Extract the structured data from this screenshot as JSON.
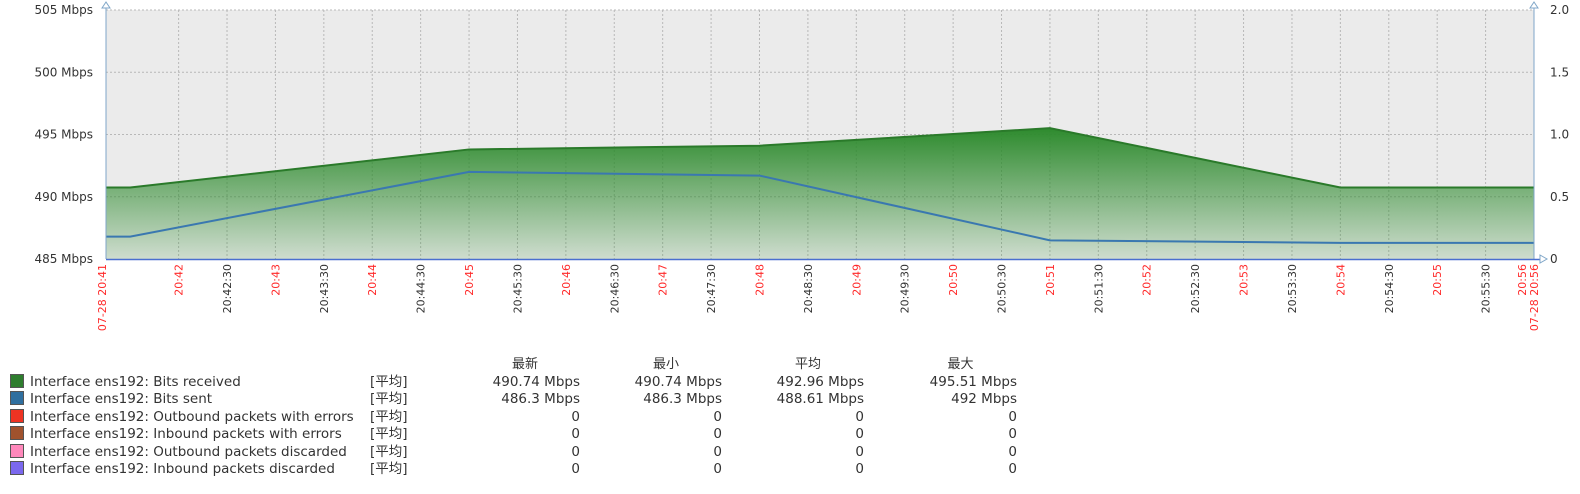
{
  "chart_data": {
    "type": "area",
    "y_left": {
      "ticks": [
        "485 Mbps",
        "490 Mbps",
        "495 Mbps",
        "500 Mbps",
        "505 Mbps"
      ],
      "ylim": [
        485,
        505
      ],
      "unit": "Mbps"
    },
    "y_right": {
      "ticks": [
        "0",
        "0.5",
        "1.0",
        "1.5",
        "2.0"
      ],
      "ylim": [
        0,
        2
      ]
    },
    "x_range": [
      "20:41:15",
      "20:56:00"
    ],
    "x_labels": [
      {
        "t": "20:41:15",
        "label": "07-28 20:41",
        "red": true
      },
      {
        "t": "20:42:00",
        "label": "20:42",
        "red": true
      },
      {
        "t": "20:42:30",
        "label": "20:42:30",
        "red": false
      },
      {
        "t": "20:43:00",
        "label": "20:43",
        "red": true
      },
      {
        "t": "20:43:30",
        "label": "20:43:30",
        "red": false
      },
      {
        "t": "20:44:00",
        "label": "20:44",
        "red": true
      },
      {
        "t": "20:44:30",
        "label": "20:44:30",
        "red": false
      },
      {
        "t": "20:45:00",
        "label": "20:45",
        "red": true
      },
      {
        "t": "20:45:30",
        "label": "20:45:30",
        "red": false
      },
      {
        "t": "20:46:00",
        "label": "20:46",
        "red": true
      },
      {
        "t": "20:46:30",
        "label": "20:46:30",
        "red": false
      },
      {
        "t": "20:47:00",
        "label": "20:47",
        "red": true
      },
      {
        "t": "20:47:30",
        "label": "20:47:30",
        "red": false
      },
      {
        "t": "20:48:00",
        "label": "20:48",
        "red": true
      },
      {
        "t": "20:48:30",
        "label": "20:48:30",
        "red": false
      },
      {
        "t": "20:49:00",
        "label": "20:49",
        "red": true
      },
      {
        "t": "20:49:30",
        "label": "20:49:30",
        "red": false
      },
      {
        "t": "20:50:00",
        "label": "20:50",
        "red": true
      },
      {
        "t": "20:50:30",
        "label": "20:50:30",
        "red": false
      },
      {
        "t": "20:51:00",
        "label": "20:51",
        "red": true
      },
      {
        "t": "20:51:30",
        "label": "20:51:30",
        "red": false
      },
      {
        "t": "20:52:00",
        "label": "20:52",
        "red": true
      },
      {
        "t": "20:52:30",
        "label": "20:52:30",
        "red": false
      },
      {
        "t": "20:53:00",
        "label": "20:53",
        "red": true
      },
      {
        "t": "20:53:30",
        "label": "20:53:30",
        "red": false
      },
      {
        "t": "20:54:00",
        "label": "20:54",
        "red": true
      },
      {
        "t": "20:54:30",
        "label": "20:54:30",
        "red": false
      },
      {
        "t": "20:55:00",
        "label": "20:55",
        "red": true
      },
      {
        "t": "20:55:30",
        "label": "20:55:30",
        "red": false
      },
      {
        "t": "20:56:00",
        "label": "20:56",
        "red": true
      },
      {
        "t": "20:56:00",
        "label": "07-28 20:56",
        "red": true
      }
    ],
    "series": [
      {
        "name": "Interface ens192: Bits received",
        "color": "#2e8b2e",
        "fill": true,
        "x": [
          "20:41:15",
          "20:41:30",
          "20:45:00",
          "20:48:00",
          "20:51:00",
          "20:54:00",
          "20:56:00"
        ],
        "y": [
          490.74,
          490.74,
          493.8,
          494.1,
          495.51,
          490.74,
          490.74
        ]
      },
      {
        "name": "Interface ens192: Bits sent",
        "color": "#3a78b0",
        "fill": false,
        "x": [
          "20:41:15",
          "20:41:30",
          "20:45:00",
          "20:48:00",
          "20:51:00",
          "20:54:00",
          "20:56:00"
        ],
        "y": [
          486.8,
          486.8,
          492.0,
          491.7,
          486.5,
          486.3,
          486.3
        ]
      }
    ],
    "grid": true
  },
  "legend": {
    "headers": [
      "最新",
      "最小",
      "平均",
      "最大"
    ],
    "rows": [
      {
        "color": "#2e7d2e",
        "name": "Interface ens192: Bits received",
        "agg": "[平均]",
        "last": "490.74 Mbps",
        "min": "490.74 Mbps",
        "avg": "492.96 Mbps",
        "max": "495.51 Mbps"
      },
      {
        "color": "#2f6f9f",
        "name": "Interface ens192: Bits sent",
        "agg": "[平均]",
        "last": "486.3 Mbps",
        "min": "486.3 Mbps",
        "avg": "488.61 Mbps",
        "max": "492 Mbps"
      },
      {
        "color": "#ee3322",
        "name": "Interface ens192: Outbound packets with errors",
        "agg": "[平均]",
        "last": "0",
        "min": "0",
        "avg": "0",
        "max": "0"
      },
      {
        "color": "#a0522d",
        "name": "Interface ens192: Inbound packets with errors",
        "agg": "[平均]",
        "last": "0",
        "min": "0",
        "avg": "0",
        "max": "0"
      },
      {
        "color": "#ff88bb",
        "name": "Interface ens192: Outbound packets discarded",
        "agg": "[平均]",
        "last": "0",
        "min": "0",
        "avg": "0",
        "max": "0"
      },
      {
        "color": "#7b68ee",
        "name": "Interface ens192: Inbound packets discarded",
        "agg": "[平均]",
        "last": "0",
        "min": "0",
        "avg": "0",
        "max": "0"
      }
    ]
  }
}
